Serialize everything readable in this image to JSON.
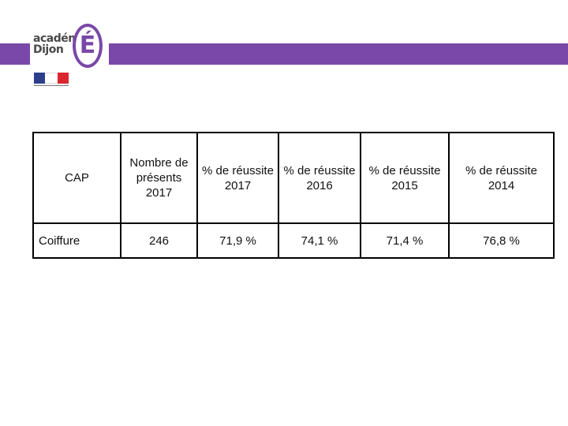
{
  "header": {
    "logo_line1": "académie",
    "logo_line2": "Dijon",
    "logo_letter": "É",
    "brand_color": "#7a48a8"
  },
  "table": {
    "headers": [
      "CAP",
      "Nombre de présents 2017",
      "% de réussite 2017",
      "% de réussite 2016",
      "% de réussite 2015",
      "% de réussite 2014"
    ],
    "rows": [
      [
        "Coiffure",
        "246",
        "71,9 %",
        "74,1 %",
        "71,4 %",
        "76,8 %"
      ]
    ]
  }
}
